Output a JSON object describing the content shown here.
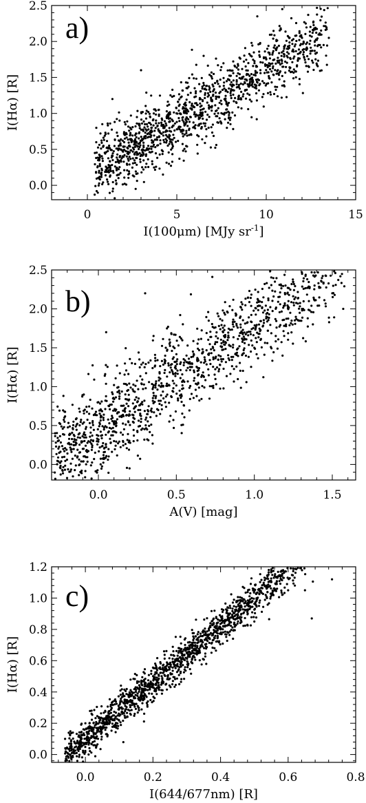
{
  "chart_data": [
    {
      "type": "scatter",
      "panel_label": "a)",
      "xlabel": "I(100μm) [MJy sr",
      "xlabel_sup": "-1",
      "xlabel_end": "]",
      "ylabel": "I(Hα) [R]",
      "xlim": [
        -2,
        15
      ],
      "ylim": [
        -0.2,
        2.5
      ],
      "xticks": [
        0,
        5,
        10,
        15
      ],
      "yticks": [
        0.0,
        0.5,
        1.0,
        1.5,
        2.0,
        2.5
      ],
      "xtick_labels": [
        "0",
        "5",
        "10",
        "15"
      ],
      "ytick_labels": [
        "0.0",
        "0.5",
        "1.0",
        "1.5",
        "2.0",
        "2.5"
      ],
      "grid": false,
      "trend": {
        "x_range": [
          0.4,
          13.6
        ],
        "slope": 0.145,
        "intercept": 0.15,
        "scatter": 0.24,
        "n": 1300
      },
      "series": [
        {
          "values": [
            [
              0.5,
              0.8
            ],
            [
              0.6,
              0.35
            ],
            [
              0.9,
              0.55
            ],
            [
              1.2,
              0.25
            ],
            [
              1.4,
              1.2
            ],
            [
              1.8,
              0.9
            ],
            [
              2.1,
              0.7
            ],
            [
              2.6,
              0.5
            ],
            [
              2.7,
              -0.05
            ],
            [
              3.0,
              1.6
            ],
            [
              3.3,
              0.3
            ],
            [
              4.0,
              1.05
            ],
            [
              5.2,
              1.0
            ],
            [
              6.0,
              1.35
            ],
            [
              7.0,
              1.4
            ],
            [
              8.0,
              0.85
            ],
            [
              9.0,
              1.7
            ],
            [
              10.0,
              1.75
            ],
            [
              11.0,
              1.9
            ],
            [
              12.0,
              2.05
            ],
            [
              13.0,
              1.95
            ],
            [
              13.5,
              2.05
            ],
            [
              9.5,
              2.35
            ],
            [
              6.5,
              1.8
            ]
          ]
        }
      ]
    },
    {
      "type": "scatter",
      "panel_label": "b)",
      "xlabel": "A(V) [mag]",
      "ylabel": "I(Hα) [R]",
      "xlim": [
        -0.3,
        1.65
      ],
      "ylim": [
        -0.2,
        2.5
      ],
      "xticks": [
        0.0,
        0.5,
        1.0,
        1.5
      ],
      "yticks": [
        0.0,
        0.5,
        1.0,
        1.5,
        2.0,
        2.5
      ],
      "xtick_labels": [
        "0.0",
        "0.5",
        "1.0",
        "1.5"
      ],
      "ytick_labels": [
        "0.0",
        "0.5",
        "1.0",
        "1.5",
        "2.0",
        "2.5"
      ],
      "grid": false,
      "trend": {
        "x_range": [
          -0.28,
          1.58
        ],
        "slope": 1.35,
        "intercept": 0.45,
        "scatter": 0.3,
        "n": 1300
      },
      "series": [
        {
          "values": [
            [
              -0.26,
              0.3
            ],
            [
              -0.22,
              0.48
            ],
            [
              -0.1,
              0.2
            ],
            [
              0.0,
              0.8
            ],
            [
              0.05,
              1.7
            ],
            [
              0.1,
              0.3
            ],
            [
              0.2,
              -0.05
            ],
            [
              0.3,
              2.2
            ],
            [
              0.4,
              1.0
            ],
            [
              0.6,
              1.3
            ],
            [
              0.8,
              1.7
            ],
            [
              1.0,
              1.5
            ],
            [
              1.2,
              2.3
            ],
            [
              1.35,
              2.1
            ],
            [
              1.5,
              2.2
            ],
            [
              1.57,
              2.0
            ]
          ]
        }
      ]
    },
    {
      "type": "scatter",
      "panel_label": "c)",
      "xlabel": "I(644/677nm) [R]",
      "ylabel": "I(Hα) [R]",
      "xlim": [
        -0.1,
        0.8
      ],
      "ylim": [
        -0.05,
        1.2
      ],
      "xticks": [
        0.0,
        0.2,
        0.4,
        0.6,
        0.8
      ],
      "yticks": [
        0.0,
        0.2,
        0.4,
        0.6,
        0.8,
        1.0,
        1.2
      ],
      "xtick_labels": [
        "0.0",
        "0.2",
        "0.4",
        "0.6",
        "0.8"
      ],
      "ytick_labels": [
        "0.0",
        "0.2",
        "0.4",
        "0.6",
        "0.8",
        "1.0",
        "1.2"
      ],
      "grid": false,
      "trend": {
        "x_range": [
          -0.06,
          0.73
        ],
        "slope": 1.8,
        "intercept": 0.1,
        "scatter": 0.06,
        "n": 1600
      },
      "series": [
        {
          "values": [
            [
              -0.06,
              0.1
            ],
            [
              -0.04,
              0.01
            ],
            [
              -0.02,
              0.05
            ],
            [
              0.0,
              0.2
            ],
            [
              0.1,
              0.3
            ],
            [
              0.2,
              0.45
            ],
            [
              0.3,
              0.65
            ],
            [
              0.4,
              0.8
            ],
            [
              0.5,
              0.85
            ],
            [
              0.6,
              1.05
            ],
            [
              0.62,
              1.08
            ],
            [
              0.65,
              1.05
            ],
            [
              0.67,
              0.87
            ],
            [
              0.73,
              1.12
            ]
          ]
        }
      ]
    }
  ]
}
